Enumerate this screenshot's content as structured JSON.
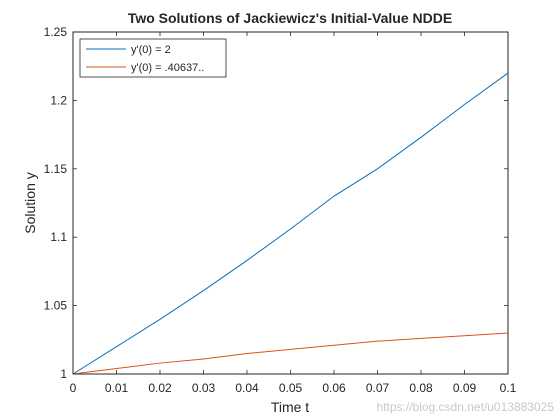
{
  "chart_data": {
    "type": "line",
    "title": "Two Solutions of Jackiewicz's Initial-Value NDDE",
    "xlabel": "Time t",
    "ylabel": "Solution y",
    "xlim": [
      0,
      0.1
    ],
    "ylim": [
      1,
      1.25
    ],
    "xticks": [
      0,
      0.01,
      0.02,
      0.03,
      0.04,
      0.05,
      0.06,
      0.07,
      0.08,
      0.09,
      0.1
    ],
    "xtick_labels": [
      "0",
      "0.01",
      "0.02",
      "0.03",
      "0.04",
      "0.05",
      "0.06",
      "0.07",
      "0.08",
      "0.09",
      "0.1"
    ],
    "yticks": [
      1,
      1.05,
      1.1,
      1.15,
      1.2,
      1.25
    ],
    "ytick_labels": [
      "1",
      "1.05",
      "1.1",
      "1.15",
      "1.2",
      "1.25"
    ],
    "grid": false,
    "legend_position": "top-left",
    "series": [
      {
        "name": "y'(0) = 2",
        "color": "#0072BD",
        "x": [
          0,
          0.01,
          0.02,
          0.03,
          0.04,
          0.05,
          0.06,
          0.07,
          0.08,
          0.09,
          0.1
        ],
        "y": [
          1.0,
          1.02,
          1.04,
          1.061,
          1.083,
          1.106,
          1.13,
          1.15,
          1.173,
          1.197,
          1.22
        ]
      },
      {
        "name": "y'(0) = .40637..",
        "color": "#D95319",
        "x": [
          0,
          0.01,
          0.02,
          0.03,
          0.04,
          0.05,
          0.06,
          0.07,
          0.08,
          0.09,
          0.1
        ],
        "y": [
          1.0,
          1.004,
          1.008,
          1.011,
          1.015,
          1.018,
          1.021,
          1.024,
          1.026,
          1.028,
          1.03
        ]
      }
    ]
  },
  "watermark": "https://blog.csdn.net/u013883025"
}
